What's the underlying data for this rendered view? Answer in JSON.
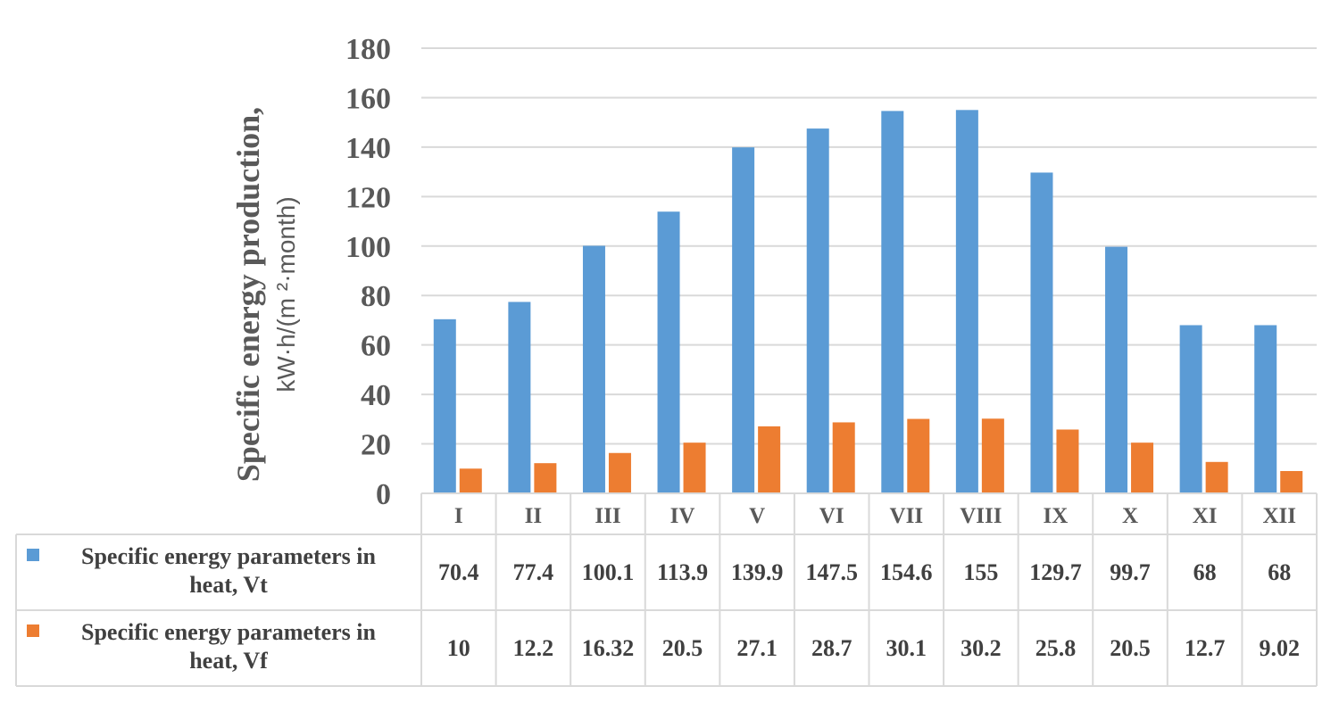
{
  "chart_data": {
    "type": "bar",
    "ylabel_line1": "Specific energy production,",
    "ylabel_line2": "kW·h/(m ²·month)",
    "ylim": [
      0,
      180
    ],
    "yticks": [
      "0",
      "20",
      "40",
      "60",
      "80",
      "100",
      "120",
      "140",
      "160",
      "180"
    ],
    "grid": true,
    "legend": "data-table-left",
    "categories": [
      "I",
      "II",
      "III",
      "IV",
      "V",
      "VI",
      "VII",
      "VIII",
      "IX",
      "X",
      "XI",
      "XII"
    ],
    "series": [
      {
        "name_line1": "Specific energy parameters in",
        "name_line2": "heat, Vt",
        "color": "#5b9bd5",
        "values": [
          70.4,
          77.4,
          100.1,
          113.9,
          139.9,
          147.5,
          154.6,
          155,
          129.7,
          99.7,
          68,
          68
        ],
        "labels": [
          "70.4",
          "77.4",
          "100.1",
          "113.9",
          "139.9",
          "147.5",
          "154.6",
          "155",
          "129.7",
          "99.7",
          "68",
          "68"
        ]
      },
      {
        "name_line1": "Specific energy parameters in",
        "name_line2": "heat, Vf",
        "color": "#ed7d31",
        "values": [
          10,
          12.2,
          16.32,
          20.5,
          27.1,
          28.7,
          30.1,
          30.2,
          25.8,
          20.5,
          12.7,
          9.02
        ],
        "labels": [
          "10",
          "12.2",
          "16.32",
          "20.5",
          "27.1",
          "28.7",
          "30.1",
          "30.2",
          "25.8",
          "20.5",
          "12.7",
          "9.02"
        ]
      }
    ]
  }
}
